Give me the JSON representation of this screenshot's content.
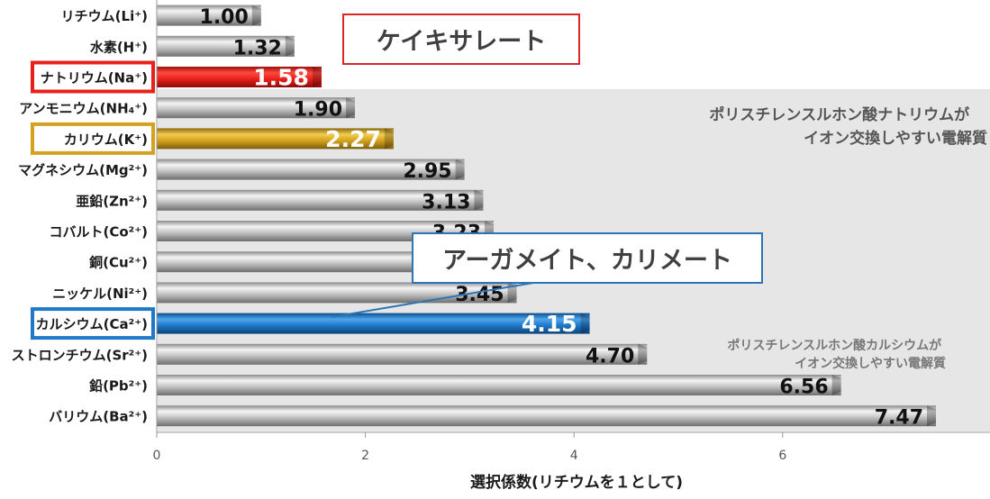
{
  "chart_data": {
    "type": "bar",
    "orientation": "horizontal",
    "categories": [
      "リチウム(Li⁺)",
      "水素(H⁺)",
      "ナトリウム(Na⁺)",
      "アンモニウム(NH₄⁺)",
      "カリウム(K⁺)",
      "マグネシウム(Mg²⁺)",
      "亜鉛(Zn²⁺)",
      "コバルト(Co²⁺)",
      "銅(Cu²⁺)",
      "ニッケル(Ni²⁺)",
      "カルシウム(Ca²⁺)",
      "ストロンチウム(Sr²⁺)",
      "鉛(Pb²⁺)",
      "バリウム(Ba²⁺)"
    ],
    "values": [
      1.0,
      1.32,
      1.58,
      1.9,
      2.27,
      2.95,
      3.13,
      3.23,
      3.29,
      3.45,
      4.15,
      4.7,
      6.56,
      7.47
    ],
    "value_labels": [
      "1.00",
      "1.32",
      "1.58",
      "1.90",
      "2.27",
      "2.95",
      "3.13",
      "3.23",
      "",
      "3.45",
      "4.15",
      "4.70",
      "6.56",
      "7.47"
    ],
    "highlighted": [
      {
        "index": 2,
        "color": "#e8201c"
      },
      {
        "index": 4,
        "color": "#d4a21e"
      },
      {
        "index": 10,
        "color": "#1f78c8"
      }
    ],
    "xlabel": "選択係数(リチウムを１として)",
    "xticks": [
      0,
      2,
      4,
      6
    ],
    "xlim": [
      0,
      7.7
    ],
    "grid": false,
    "annotations": [
      {
        "text": [
          "ポリスチレンスルホン酸ナトリウムが",
          "イオン交換しやすい電解質"
        ]
      },
      {
        "text": [
          "ポリスチレンスルホン酸カルシウムが",
          "イオン交換しやすい電解質"
        ]
      }
    ]
  },
  "callouts": {
    "red": "ケイキサレート",
    "blue": "アーガメイト、カリメート"
  },
  "colors": {
    "red": "#e8201c",
    "gold": "#d4a21e",
    "blue": "#1f78c8",
    "shade": "#e6e6e6"
  }
}
